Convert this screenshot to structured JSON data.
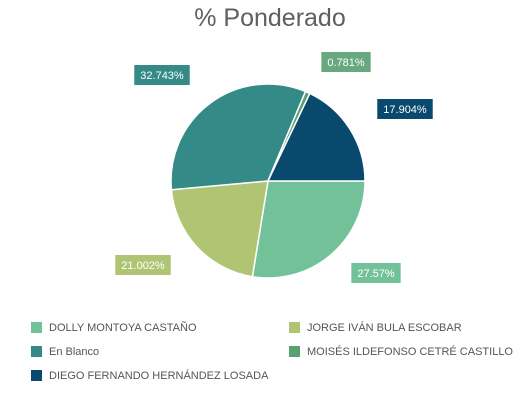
{
  "chart_data": {
    "type": "pie",
    "title": "% Ponderado",
    "slices": [
      {
        "label": "DOLLY MONTOYA CASTAÑO",
        "value": 27.57,
        "display": "27.57%",
        "color": "#73c198"
      },
      {
        "label": "JORGE IVÁN BULA ESCOBAR",
        "value": 21.002,
        "display": "21.002%",
        "color": "#afc574"
      },
      {
        "label": "En Blanco",
        "value": 32.743,
        "display": "32.743%",
        "color": "#338a87"
      },
      {
        "label": "MOISÉS ILDEFONSO CETRÉ CASTILLO",
        "value": 0.781,
        "display": "0.781%",
        "color": "#5aa073"
      },
      {
        "label": "DIEGO FERNANDO HERNÁNDEZ LOSADA",
        "value": 17.904,
        "display": "17.904%",
        "color": "#08496d"
      }
    ],
    "legend": [
      {
        "label": "DOLLY MONTOYA CASTAÑO",
        "color": "#73c198"
      },
      {
        "label": "JORGE IVÁN BULA ESCOBAR",
        "color": "#afc574"
      },
      {
        "label": "En Blanco",
        "color": "#338a87"
      },
      {
        "label": "MOISÉS ILDEFONSO CETRÉ CASTILLO",
        "color": "#5aa073"
      },
      {
        "label": "DIEGO FERNANDO HERNÁNDEZ LOSADA",
        "color": "#08496d"
      }
    ],
    "legend_position": "bottom"
  }
}
